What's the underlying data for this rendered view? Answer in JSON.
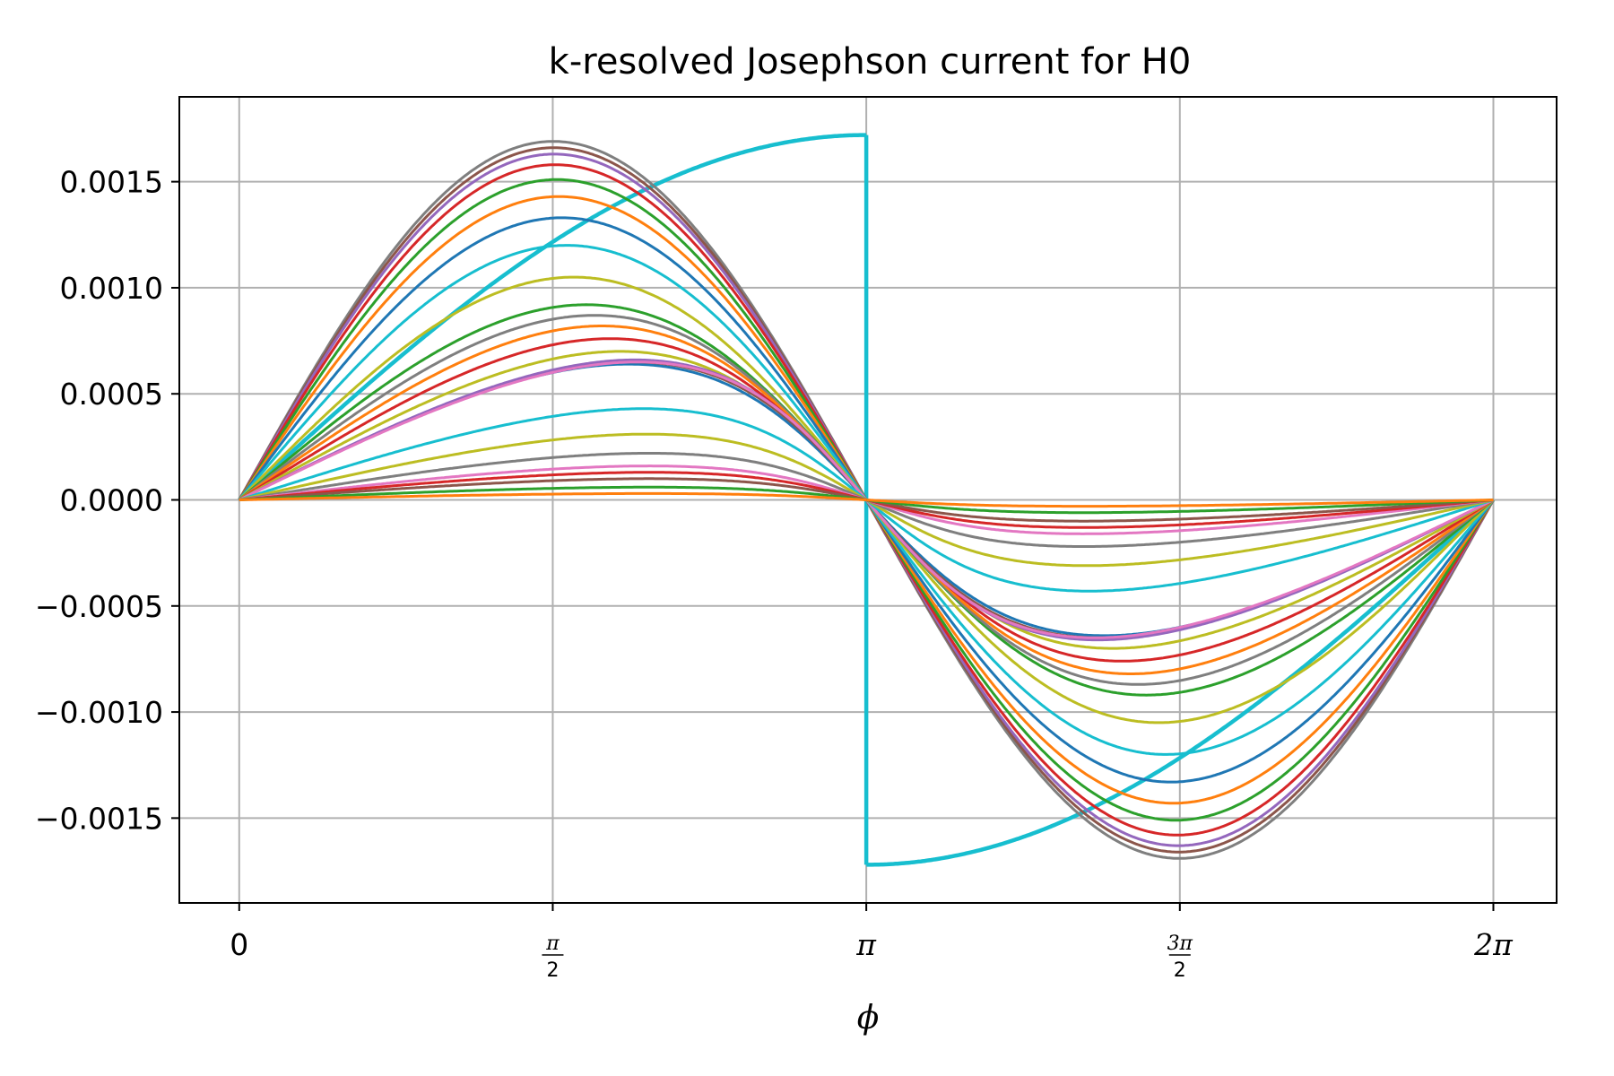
{
  "chart_data": {
    "type": "line",
    "title": "k-resolved Josephson current for H0",
    "xlabel": "ϕ",
    "ylabel": "",
    "xlim": [
      -0.3,
      6.6
    ],
    "ylim": [
      -0.0019,
      0.0019
    ],
    "grid": true,
    "legend": "none",
    "x_ticks": [
      {
        "value": 0,
        "label": "0"
      },
      {
        "value": 1.5708,
        "label": "π/2"
      },
      {
        "value": 3.1416,
        "label": "π"
      },
      {
        "value": 4.7124,
        "label": "3π/2"
      },
      {
        "value": 6.2832,
        "label": "2π"
      }
    ],
    "y_ticks": [
      {
        "value": 0.0015,
        "label": "0.0015"
      },
      {
        "value": 0.001,
        "label": "0.0010"
      },
      {
        "value": 0.0005,
        "label": "0.0005"
      },
      {
        "value": 0.0,
        "label": "0.0000"
      },
      {
        "value": -0.0005,
        "label": "−0.0005"
      },
      {
        "value": -0.001,
        "label": "−0.0010"
      },
      {
        "value": -0.0015,
        "label": "−0.0015"
      }
    ],
    "series": [
      {
        "color": "#17becf",
        "amplitude": 0.00172,
        "sharpness": 0.0
      },
      {
        "color": "#7f7f7f",
        "amplitude": 0.00169,
        "sharpness": 0.01
      },
      {
        "color": "#8c564b",
        "amplitude": 0.00166,
        "sharpness": 0.02
      },
      {
        "color": "#9467bd",
        "amplitude": 0.00163,
        "sharpness": 0.03
      },
      {
        "color": "#d62728",
        "amplitude": 0.00158,
        "sharpness": 0.05
      },
      {
        "color": "#2ca02c",
        "amplitude": 0.00151,
        "sharpness": 0.08
      },
      {
        "color": "#ff7f0e",
        "amplitude": 0.00143,
        "sharpness": 0.12
      },
      {
        "color": "#1f77b4",
        "amplitude": 0.00133,
        "sharpness": 0.17
      },
      {
        "color": "#17becf",
        "amplitude": 0.0012,
        "sharpness": 0.25
      },
      {
        "color": "#bcbd22",
        "amplitude": 0.00105,
        "sharpness": 0.35
      },
      {
        "color": "#2ca02c",
        "amplitude": 0.00092,
        "sharpness": 0.5
      },
      {
        "color": "#7f7f7f",
        "amplitude": 0.00087,
        "sharpness": 0.58
      },
      {
        "color": "#ff7f0e",
        "amplitude": 0.00082,
        "sharpness": 0.64
      },
      {
        "color": "#d62728",
        "amplitude": 0.00076,
        "sharpness": 0.7
      },
      {
        "color": "#bcbd22",
        "amplitude": 0.0007,
        "sharpness": 0.76
      },
      {
        "color": "#1f77b4",
        "amplitude": 0.00064,
        "sharpness": 0.8
      },
      {
        "color": "#8c564b",
        "amplitude": 0.00065,
        "sharpness": 0.82
      },
      {
        "color": "#9467bd",
        "amplitude": 0.00066,
        "sharpness": 0.83
      },
      {
        "color": "#e377c2",
        "amplitude": 0.00065,
        "sharpness": 0.84
      },
      {
        "color": "#17becf",
        "amplitude": 0.00043,
        "sharpness": 0.86
      },
      {
        "color": "#bcbd22",
        "amplitude": 0.00031,
        "sharpness": 0.87
      },
      {
        "color": "#7f7f7f",
        "amplitude": 0.00022,
        "sharpness": 0.88
      },
      {
        "color": "#e377c2",
        "amplitude": 0.00016,
        "sharpness": 0.88
      },
      {
        "color": "#d62728",
        "amplitude": 0.00013,
        "sharpness": 0.88
      },
      {
        "color": "#8c564b",
        "amplitude": 0.0001,
        "sharpness": 0.88
      },
      {
        "color": "#2ca02c",
        "amplitude": 6e-05,
        "sharpness": 0.88
      },
      {
        "color": "#ff7f0e",
        "amplitude": 3e-05,
        "sharpness": 0.88
      }
    ]
  }
}
